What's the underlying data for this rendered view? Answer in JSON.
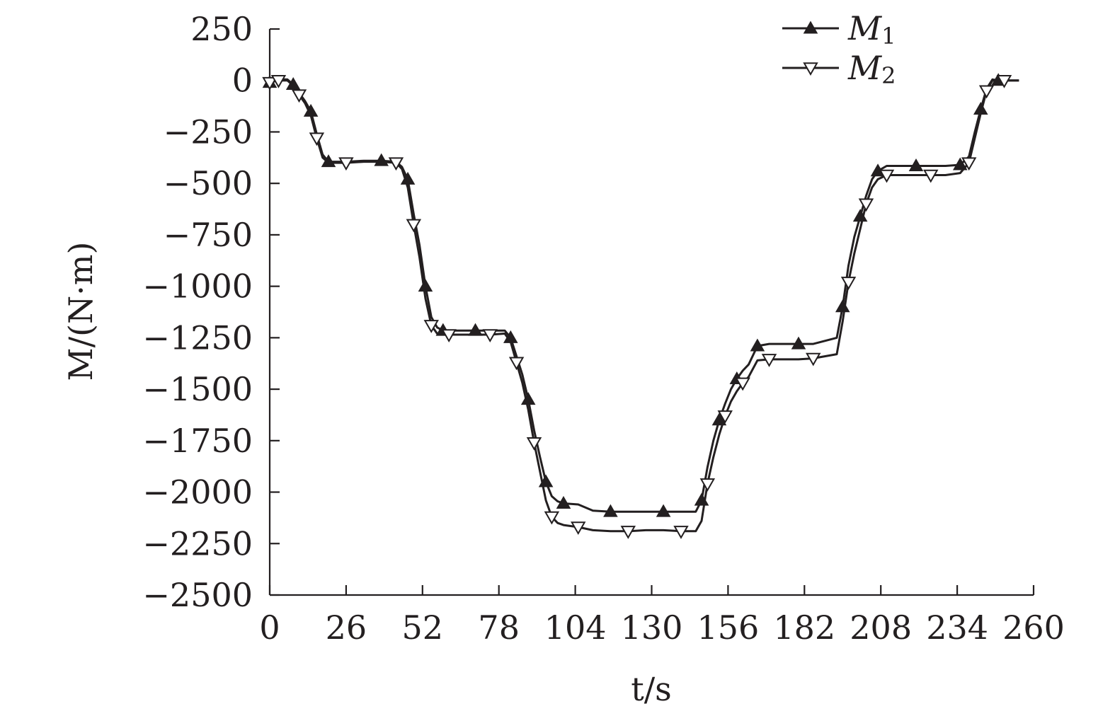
{
  "chart_data": {
    "type": "line",
    "xlabel": "t/s",
    "ylabel": "M/(N·m)",
    "xlim": [
      0,
      260
    ],
    "ylim": [
      -2500,
      250
    ],
    "x_ticks": [
      0,
      26,
      52,
      78,
      104,
      130,
      156,
      182,
      208,
      234,
      260
    ],
    "y_ticks": [
      250,
      0,
      -250,
      -500,
      -750,
      -1000,
      -1250,
      -1500,
      -1750,
      -2000,
      -2250,
      -2500
    ],
    "x_tick_labels": [
      "0",
      "26",
      "52",
      "78",
      "104",
      "130",
      "156",
      "182",
      "208",
      "234",
      "260"
    ],
    "y_tick_labels": [
      "250",
      "0",
      "−250",
      "−500",
      "−750",
      "−1000",
      "−1250",
      "−1500",
      "−1750",
      "−2000",
      "−2250",
      "−2500"
    ],
    "grid": false,
    "legend": "top-right",
    "series": [
      {
        "name": "M1",
        "name_main": "M",
        "name_sub": "1",
        "marker": "triangle-up-filled",
        "color": "#231f20",
        "x": [
          0,
          3,
          6,
          8,
          10,
          12,
          14,
          16,
          18,
          20,
          26,
          32,
          38,
          43,
          45,
          47,
          49,
          51,
          53,
          55,
          57,
          59,
          61,
          65,
          70,
          75,
          80,
          82,
          84,
          86,
          88,
          90,
          92,
          94,
          96,
          98,
          100,
          105,
          110,
          116,
          122,
          128,
          134,
          140,
          145,
          147,
          149,
          151,
          153,
          155,
          157,
          159,
          161,
          163,
          166,
          170,
          175,
          180,
          185,
          193,
          195,
          197,
          199,
          201,
          203,
          205,
          207,
          210,
          215,
          220,
          225,
          230,
          235,
          238,
          240,
          242,
          244,
          246,
          248,
          250,
          255
        ],
        "y": [
          -10,
          5,
          5,
          -20,
          -60,
          -100,
          -150,
          -260,
          -360,
          -395,
          -395,
          -390,
          -390,
          -395,
          -420,
          -480,
          -650,
          -800,
          -1000,
          -1150,
          -1200,
          -1215,
          -1215,
          -1215,
          -1215,
          -1215,
          -1215,
          -1250,
          -1340,
          -1430,
          -1550,
          -1700,
          -1830,
          -1950,
          -2020,
          -2045,
          -2055,
          -2060,
          -2090,
          -2095,
          -2095,
          -2095,
          -2095,
          -2095,
          -2095,
          -2040,
          -1880,
          -1750,
          -1650,
          -1570,
          -1500,
          -1450,
          -1410,
          -1380,
          -1290,
          -1280,
          -1280,
          -1280,
          -1280,
          -1250,
          -1100,
          -900,
          -760,
          -660,
          -560,
          -480,
          -440,
          -415,
          -415,
          -415,
          -415,
          -415,
          -410,
          -370,
          -250,
          -140,
          -40,
          5,
          0,
          0,
          0
        ]
      },
      {
        "name": "M2",
        "name_main": "M",
        "name_sub": "2",
        "marker": "triangle-down-open",
        "color": "#231f20",
        "x": [
          0,
          3,
          6,
          8,
          10,
          12,
          14,
          16,
          18,
          20,
          26,
          32,
          38,
          43,
          45,
          47,
          49,
          51,
          53,
          55,
          57,
          59,
          61,
          65,
          70,
          75,
          80,
          82,
          84,
          86,
          88,
          90,
          92,
          94,
          96,
          98,
          100,
          105,
          110,
          116,
          122,
          128,
          134,
          140,
          145,
          147,
          149,
          151,
          153,
          155,
          157,
          159,
          161,
          163,
          166,
          170,
          175,
          180,
          185,
          193,
          195,
          197,
          199,
          201,
          203,
          205,
          207,
          210,
          215,
          220,
          225,
          230,
          235,
          238,
          240,
          242,
          244,
          246,
          248,
          250,
          255
        ],
        "y": [
          -10,
          0,
          0,
          -25,
          -70,
          -110,
          -170,
          -280,
          -375,
          -400,
          -400,
          -395,
          -395,
          -400,
          -430,
          -520,
          -700,
          -860,
          -1060,
          -1190,
          -1230,
          -1235,
          -1235,
          -1235,
          -1235,
          -1235,
          -1230,
          -1270,
          -1370,
          -1470,
          -1600,
          -1760,
          -1900,
          -2040,
          -2120,
          -2150,
          -2160,
          -2170,
          -2185,
          -2190,
          -2190,
          -2185,
          -2185,
          -2190,
          -2190,
          -2140,
          -1960,
          -1830,
          -1720,
          -1630,
          -1560,
          -1510,
          -1470,
          -1440,
          -1360,
          -1355,
          -1355,
          -1355,
          -1350,
          -1330,
          -1170,
          -980,
          -840,
          -720,
          -600,
          -520,
          -480,
          -460,
          -460,
          -460,
          -460,
          -460,
          -450,
          -400,
          -280,
          -160,
          -50,
          0,
          0,
          0,
          0
        ]
      }
    ]
  }
}
